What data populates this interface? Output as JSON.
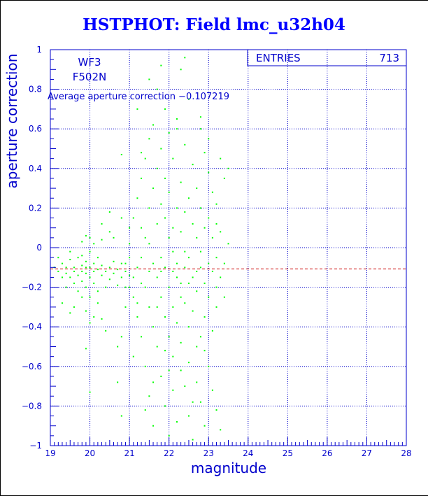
{
  "chart_data": {
    "type": "scatter",
    "title": "HSTPHOT: Field lmc_u32h04",
    "xlabel": "magnitude",
    "ylabel": "aperture correction",
    "xlim": [
      19,
      28
    ],
    "ylim": [
      -1,
      1
    ],
    "x_ticks": [
      19,
      20,
      21,
      22,
      23,
      24,
      25,
      26,
      27,
      28
    ],
    "y_ticks": [
      -1,
      -0.8,
      -0.6,
      -0.4,
      -0.2,
      0,
      0.2,
      0.4,
      0.6,
      0.8,
      1
    ],
    "x_tick_labels": [
      "19",
      "20",
      "21",
      "22",
      "23",
      "24",
      "25",
      "26",
      "27",
      "28"
    ],
    "y_tick_labels": [
      "−1",
      "−0.8",
      "−0.6",
      "−0.4",
      "−0.2",
      "0",
      "0.2",
      "0.4",
      "0.6",
      "0.8",
      "1"
    ],
    "grid": true,
    "annotations": {
      "camera": "WF3",
      "filter": "F502N",
      "average": "Average aperture correction −0.107219"
    },
    "stats": {
      "label": "ENTRIES",
      "value": "713"
    },
    "reference_line": {
      "y": -0.107219,
      "color": "#cc0000",
      "style": "dashed"
    },
    "point_color": "#00ff00",
    "series": [
      {
        "values": [
          [
            19.1,
            -0.1
          ],
          [
            19.2,
            -0.12
          ],
          [
            19.2,
            -0.05
          ],
          [
            19.3,
            -0.15
          ],
          [
            19.3,
            -0.08
          ],
          [
            19.4,
            -0.13
          ],
          [
            19.4,
            -0.2
          ],
          [
            19.4,
            -0.1
          ],
          [
            19.5,
            -0.06
          ],
          [
            19.5,
            -0.15
          ],
          [
            19.5,
            -0.02
          ],
          [
            19.6,
            -0.1
          ],
          [
            19.6,
            -0.18
          ],
          [
            19.6,
            -0.12
          ],
          [
            19.7,
            -0.05
          ],
          [
            19.7,
            -0.14
          ],
          [
            19.7,
            -0.22
          ],
          [
            19.8,
            -0.09
          ],
          [
            19.8,
            -0.12
          ],
          [
            19.8,
            -0.17
          ],
          [
            19.8,
            -0.04
          ],
          [
            19.9,
            -0.1
          ],
          [
            19.9,
            -0.13
          ],
          [
            19.9,
            -0.2
          ],
          [
            19.9,
            -0.07
          ],
          [
            20.0,
            -0.1
          ],
          [
            20.0,
            -0.15
          ],
          [
            20.0,
            -0.02
          ],
          [
            20.0,
            -0.25
          ],
          [
            20.1,
            -0.12
          ],
          [
            20.1,
            -0.08
          ],
          [
            20.1,
            -0.18
          ],
          [
            20.2,
            -0.11
          ],
          [
            20.2,
            -0.05
          ],
          [
            20.2,
            -0.22
          ],
          [
            20.3,
            -0.14
          ],
          [
            20.3,
            -0.09
          ],
          [
            20.4,
            -0.12
          ],
          [
            20.4,
            -0.2
          ],
          [
            20.5,
            -0.1
          ],
          [
            20.5,
            -0.16
          ],
          [
            20.6,
            -0.07
          ],
          [
            20.6,
            -0.13
          ],
          [
            20.7,
            -0.11
          ],
          [
            20.7,
            -0.19
          ],
          [
            20.8,
            -0.15
          ],
          [
            20.8,
            -0.08
          ],
          [
            20.9,
            -0.12
          ],
          [
            20.9,
            -0.2
          ],
          [
            21.0,
            -0.14
          ],
          [
            19.3,
            -0.28
          ],
          [
            19.5,
            -0.33
          ],
          [
            19.6,
            -0.3
          ],
          [
            19.8,
            -0.25
          ],
          [
            19.9,
            -0.32
          ],
          [
            20.0,
            -0.38
          ],
          [
            20.1,
            -0.35
          ],
          [
            20.2,
            -0.28
          ],
          [
            20.3,
            -0.36
          ],
          [
            20.4,
            -0.42
          ],
          [
            19.8,
            0.03
          ],
          [
            19.9,
            0.06
          ],
          [
            20.0,
            0.05
          ],
          [
            20.1,
            0.02
          ],
          [
            20.3,
            0.04
          ],
          [
            20.5,
            0.08
          ],
          [
            20.5,
            0.18
          ],
          [
            20.7,
            -0.5
          ],
          [
            20.8,
            -0.45
          ],
          [
            19.9,
            -0.51
          ],
          [
            20.0,
            -0.73
          ],
          [
            20.3,
            0.12
          ],
          [
            20.9,
            -0.3
          ],
          [
            21.0,
            0.1
          ],
          [
            20.6,
            0.05
          ],
          [
            20.8,
            0.15
          ],
          [
            20.8,
            0.47
          ],
          [
            20.8,
            -0.85
          ],
          [
            20.7,
            -0.68
          ],
          [
            21.0,
            -0.05
          ],
          [
            21.0,
            0.02
          ],
          [
            21.1,
            -0.15
          ],
          [
            21.1,
            -0.25
          ],
          [
            21.1,
            0.15
          ],
          [
            21.2,
            -0.1
          ],
          [
            21.2,
            -0.35
          ],
          [
            21.2,
            0.25
          ],
          [
            21.3,
            -0.05
          ],
          [
            21.3,
            -0.45
          ],
          [
            21.3,
            0.1
          ],
          [
            21.3,
            0.35
          ],
          [
            21.4,
            -0.2
          ],
          [
            21.4,
            -0.6
          ],
          [
            21.4,
            0.05
          ],
          [
            21.4,
            0.45
          ],
          [
            21.5,
            -0.12
          ],
          [
            21.5,
            -0.3
          ],
          [
            21.5,
            0.2
          ],
          [
            21.5,
            -0.75
          ],
          [
            21.5,
            0.55
          ],
          [
            21.6,
            -0.08
          ],
          [
            21.6,
            -0.4
          ],
          [
            21.6,
            0.3
          ],
          [
            21.6,
            -0.9
          ],
          [
            21.6,
            0.62
          ],
          [
            21.7,
            -0.15
          ],
          [
            21.7,
            -0.5
          ],
          [
            21.7,
            0.12
          ],
          [
            21.7,
            0.4
          ],
          [
            21.7,
            0.8
          ],
          [
            21.8,
            -0.05
          ],
          [
            21.8,
            -0.25
          ],
          [
            21.8,
            -0.65
          ],
          [
            21.8,
            0.22
          ],
          [
            21.8,
            0.5
          ],
          [
            21.9,
            -0.1
          ],
          [
            21.9,
            -0.35
          ],
          [
            21.9,
            -0.8
          ],
          [
            21.9,
            0.15
          ],
          [
            21.9,
            0.35
          ],
          [
            21.9,
            0.7
          ],
          [
            22.0,
            -0.2
          ],
          [
            22.0,
            -0.45
          ],
          [
            22.0,
            0.05
          ],
          [
            22.0,
            0.28
          ],
          [
            22.0,
            -0.95
          ],
          [
            22.0,
            0.58
          ],
          [
            22.1,
            -0.12
          ],
          [
            22.1,
            -0.3
          ],
          [
            22.1,
            -0.55
          ],
          [
            22.1,
            0.1
          ],
          [
            22.1,
            0.45
          ],
          [
            22.1,
            -0.72
          ],
          [
            22.2,
            -0.08
          ],
          [
            22.2,
            -0.38
          ],
          [
            22.2,
            0.2
          ],
          [
            22.2,
            0.65
          ],
          [
            22.2,
            -0.88
          ],
          [
            22.3,
            -0.18
          ],
          [
            22.3,
            -0.48
          ],
          [
            22.3,
            0.08
          ],
          [
            22.3,
            0.33
          ],
          [
            22.3,
            -0.62
          ],
          [
            22.3,
            0.9
          ],
          [
            22.4,
            -0.1
          ],
          [
            22.4,
            -0.28
          ],
          [
            22.4,
            -0.7
          ],
          [
            22.4,
            0.18
          ],
          [
            22.4,
            0.52
          ],
          [
            22.5,
            -0.05
          ],
          [
            22.5,
            -0.4
          ],
          [
            22.5,
            -0.85
          ],
          [
            22.5,
            0.25
          ],
          [
            22.5,
            0.75
          ],
          [
            22.5,
            -0.58
          ],
          [
            22.6,
            -0.15
          ],
          [
            22.6,
            -0.32
          ],
          [
            22.6,
            0.12
          ],
          [
            22.6,
            0.42
          ],
          [
            22.6,
            -0.97
          ],
          [
            22.7,
            -0.22
          ],
          [
            22.7,
            -0.5
          ],
          [
            22.7,
            0.05
          ],
          [
            22.7,
            0.3
          ],
          [
            22.7,
            -0.68
          ],
          [
            22.8,
            -0.1
          ],
          [
            22.8,
            -0.45
          ],
          [
            22.8,
            0.2
          ],
          [
            22.8,
            0.6
          ],
          [
            22.8,
            -0.78
          ],
          [
            22.9,
            -0.18
          ],
          [
            22.9,
            -0.35
          ],
          [
            22.9,
            0.1
          ],
          [
            22.9,
            -0.9
          ],
          [
            22.9,
            0.48
          ],
          [
            23.0,
            -0.25
          ],
          [
            23.0,
            -0.6
          ],
          [
            23.0,
            0.15
          ],
          [
            23.0,
            0.38
          ],
          [
            23.1,
            -0.12
          ],
          [
            23.1,
            -0.42
          ],
          [
            23.1,
            0.05
          ],
          [
            23.1,
            0.28
          ],
          [
            23.1,
            -0.72
          ],
          [
            23.2,
            -0.2
          ],
          [
            23.2,
            -0.3
          ],
          [
            23.2,
            0.12
          ],
          [
            23.2,
            0.22
          ],
          [
            23.3,
            -0.15
          ],
          [
            23.3,
            0.08
          ],
          [
            23.3,
            0.45
          ],
          [
            23.4,
            -0.08
          ],
          [
            23.4,
            -0.25
          ],
          [
            23.4,
            0.35
          ],
          [
            23.5,
            0.02
          ],
          [
            23.5,
            0.4
          ],
          [
            22.9,
            -0.52
          ],
          [
            23.2,
            -0.82
          ],
          [
            23.3,
            -0.92
          ],
          [
            21.2,
            0.7
          ],
          [
            21.5,
            0.85
          ],
          [
            21.8,
            0.92
          ],
          [
            22.4,
            0.96
          ],
          [
            22.2,
            0.6
          ],
          [
            22.8,
            0.66
          ],
          [
            23.0,
            0.55
          ],
          [
            21.3,
            0.48
          ],
          [
            21.1,
            -0.55
          ],
          [
            21.4,
            -0.82
          ],
          [
            21.6,
            -0.68
          ],
          [
            21.9,
            -0.52
          ],
          [
            22.6,
            -0.78
          ],
          [
            22.0,
            -0.62
          ],
          [
            21.7,
            -0.3
          ],
          [
            22.3,
            -0.25
          ],
          [
            22.7,
            -0.12
          ],
          [
            22.1,
            -0.02
          ],
          [
            21.5,
            0.02
          ],
          [
            22.8,
            -0.02
          ],
          [
            21.0,
            -0.2
          ],
          [
            20.9,
            -0.08
          ],
          [
            21.2,
            -0.28
          ],
          [
            21.3,
            -0.18
          ],
          [
            21.8,
            -0.12
          ],
          [
            22.2,
            -0.15
          ],
          [
            22.5,
            -0.18
          ],
          [
            23.0,
            -0.08
          ],
          [
            23.2,
            -0.05
          ],
          [
            22.4,
            -0.02
          ]
        ]
      }
    ]
  }
}
